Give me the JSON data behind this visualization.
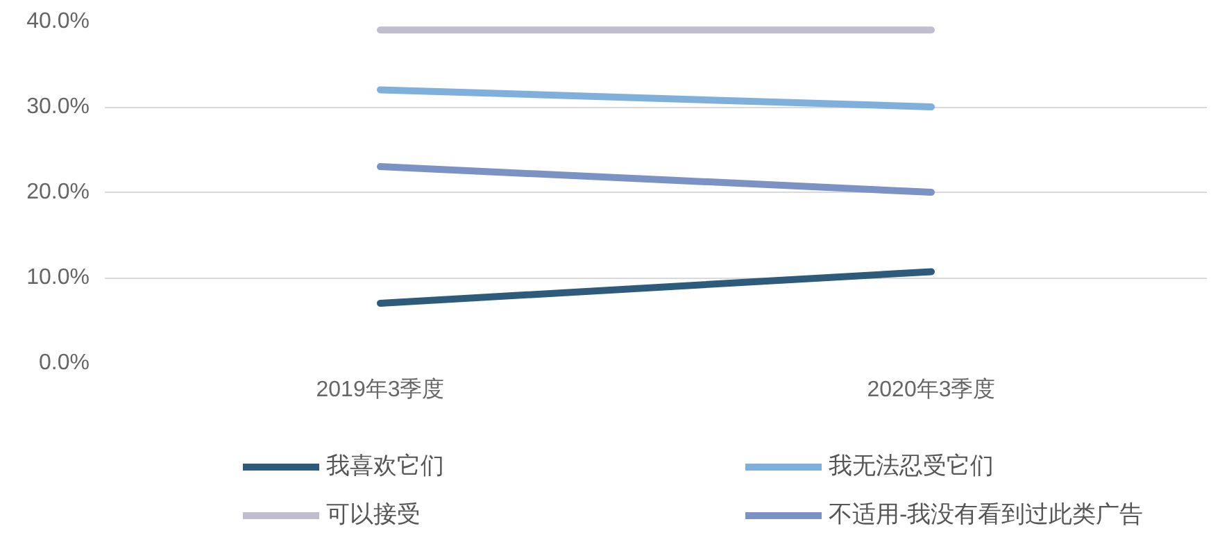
{
  "chart_data": {
    "type": "line",
    "categories": [
      "2019年3季度",
      "2020年3季度"
    ],
    "series": [
      {
        "name": "我喜欢它们",
        "color": "#2e5a7c",
        "values": [
          7.0,
          10.7
        ]
      },
      {
        "name": "我无法忍受它们",
        "color": "#7fb0dc",
        "values": [
          32.0,
          30.0
        ]
      },
      {
        "name": "可以接受",
        "color": "#c0bdd0",
        "values": [
          39.0,
          39.0
        ]
      },
      {
        "name": "不适用-我没有看到过此类广告",
        "color": "#7a93c4",
        "values": [
          23.0,
          20.0
        ]
      }
    ],
    "ylim": [
      0,
      40
    ],
    "yticks": [
      {
        "value": 0,
        "label": "0.0%"
      },
      {
        "value": 10,
        "label": "10.0%"
      },
      {
        "value": 20,
        "label": "20.0%"
      },
      {
        "value": 30,
        "label": "30.0%"
      },
      {
        "value": 40,
        "label": "40.0%"
      }
    ],
    "grid": "y",
    "legend": "bottom",
    "marker": "none",
    "line_style": "solid"
  }
}
